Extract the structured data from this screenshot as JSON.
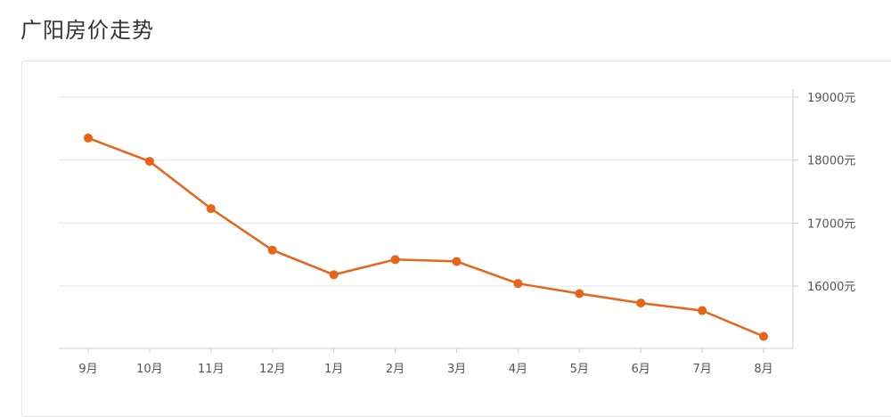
{
  "page": {
    "title": "广阳房价走势"
  },
  "chart_data": {
    "type": "line",
    "title": "广阳房价走势",
    "xlabel": "",
    "ylabel": "",
    "categories": [
      "9月",
      "10月",
      "11月",
      "12月",
      "1月",
      "2月",
      "3月",
      "4月",
      "5月",
      "6月",
      "7月",
      "8月"
    ],
    "series": [
      {
        "values": [
          18350,
          17980,
          17230,
          16570,
          16180,
          16420,
          16390,
          16040,
          15880,
          15730,
          15610,
          15200
        ]
      }
    ],
    "ylim": [
      15000,
      19400
    ],
    "yticks": [
      16000,
      17000,
      18000,
      19000
    ],
    "ytick_labels": [
      "16000元",
      "17000元",
      "18000元",
      "19000元"
    ],
    "y_axis_position": "right",
    "grid": "horizontal",
    "legend": "none",
    "colors": {
      "line": "#e8641a",
      "grid": "#e6e6e6",
      "axis": "#cccccc"
    }
  }
}
